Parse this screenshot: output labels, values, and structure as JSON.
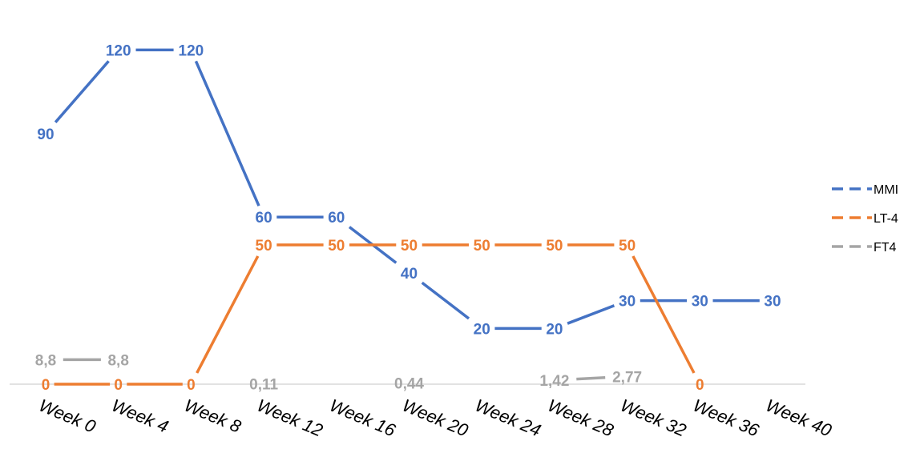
{
  "chart_data": {
    "type": "line",
    "categories": [
      "Week 0",
      "Week 4",
      "Week 8",
      "Week 12",
      "Week 16",
      "Week 20",
      "Week 24",
      "Week 28",
      "Week 32",
      "Week 36",
      "Week 40"
    ],
    "series": [
      {
        "name": "MMI",
        "color": "#4472C4",
        "values": [
          90,
          120,
          120,
          60,
          60,
          40,
          20,
          20,
          30,
          30,
          30
        ],
        "labels": [
          "90",
          "120",
          "120",
          "60",
          "60",
          "40",
          "20",
          "20",
          "30",
          "30",
          "30"
        ]
      },
      {
        "name": "LT-4",
        "color": "#ED7D31",
        "values": [
          0,
          0,
          0,
          50,
          50,
          50,
          50,
          50,
          50,
          0,
          null
        ],
        "labels": [
          "0",
          "0",
          "0",
          "50",
          "50",
          "50",
          "50",
          "50",
          "50",
          "0",
          ""
        ]
      },
      {
        "name": "FT4",
        "color": "#A5A5A5",
        "values": [
          8.8,
          8.8,
          null,
          0.11,
          null,
          0.44,
          null,
          1.42,
          2.77,
          null,
          null
        ],
        "labels": [
          "8,8",
          "8,8",
          "",
          "0,11",
          "",
          "0,44",
          "",
          "1,42",
          "2,77",
          "",
          ""
        ]
      }
    ],
    "ylim": [
      0,
      130
    ],
    "grid": false,
    "legend_position": "right",
    "title": "",
    "xlabel": "",
    "ylabel": ""
  }
}
